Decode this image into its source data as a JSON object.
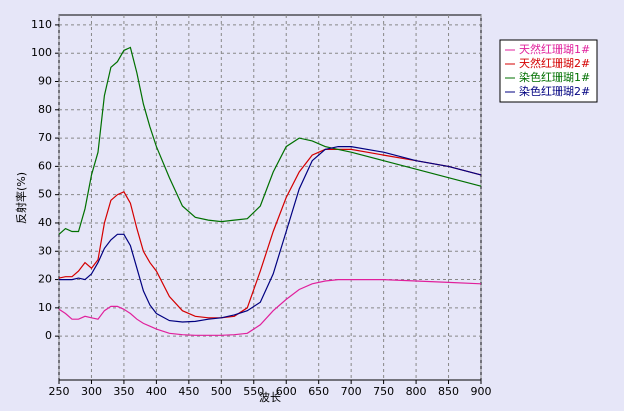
{
  "chart_data": {
    "type": "line",
    "xlabel": "波长",
    "ylabel": "反射率(%)",
    "x": [
      250,
      260,
      270,
      280,
      290,
      300,
      310,
      320,
      330,
      340,
      350,
      360,
      370,
      380,
      390,
      400,
      420,
      440,
      460,
      480,
      500,
      520,
      540,
      560,
      580,
      600,
      620,
      640,
      660,
      680,
      700,
      750,
      800,
      850,
      900
    ],
    "series": [
      {
        "name": "天然红珊瑚1#",
        "color": "#e0209c",
        "values": [
          9.5,
          8,
          6,
          6,
          7,
          6.5,
          6,
          9,
          10.5,
          10.5,
          9.5,
          8,
          6,
          4.5,
          3.5,
          2.5,
          1,
          0.5,
          0.3,
          0.3,
          0.3,
          0.5,
          1,
          4,
          9,
          13,
          16.5,
          18.5,
          19.5,
          20,
          20,
          20,
          19.5,
          19,
          18.5
        ]
      },
      {
        "name": "天然红珊瑚2#",
        "color": "#d40000",
        "values": [
          20.5,
          21,
          21,
          23,
          26,
          24,
          27,
          40,
          48,
          50,
          51,
          47,
          38,
          30,
          26,
          23,
          14,
          9,
          7,
          6.5,
          6.5,
          7,
          10,
          23,
          37,
          49,
          58,
          64,
          66,
          66,
          66,
          64,
          62,
          60,
          57
        ]
      },
      {
        "name": "染色红珊瑚1#",
        "color": "#007000",
        "values": [
          36,
          38,
          37,
          37,
          45,
          57,
          65,
          85,
          95,
          97,
          101,
          102,
          93,
          82,
          74,
          67,
          56,
          46,
          42,
          41,
          40.5,
          41,
          41.5,
          46,
          58,
          67,
          70,
          69,
          67,
          66,
          65,
          62,
          59,
          56,
          53
        ]
      },
      {
        "name": "染色红珊瑚2#",
        "color": "#000080",
        "values": [
          20,
          20,
          20,
          20.5,
          20,
          22,
          26,
          31,
          34,
          36,
          36,
          32,
          24,
          16,
          11,
          8,
          5.5,
          5,
          5.2,
          6,
          6.5,
          7.5,
          9,
          12,
          22,
          37,
          52,
          62,
          66,
          67,
          67,
          65,
          62,
          60,
          57
        ]
      }
    ],
    "xlim": [
      250,
      900
    ],
    "xticks": [
      250,
      300,
      350,
      400,
      450,
      500,
      550,
      600,
      650,
      700,
      750,
      800,
      850,
      900
    ],
    "ylim": [
      -15.5,
      113.5
    ],
    "yticks": [
      0,
      10,
      20,
      30,
      40,
      50,
      60,
      70,
      80,
      90,
      100,
      110
    ],
    "grid": true,
    "legend": "upper right"
  }
}
